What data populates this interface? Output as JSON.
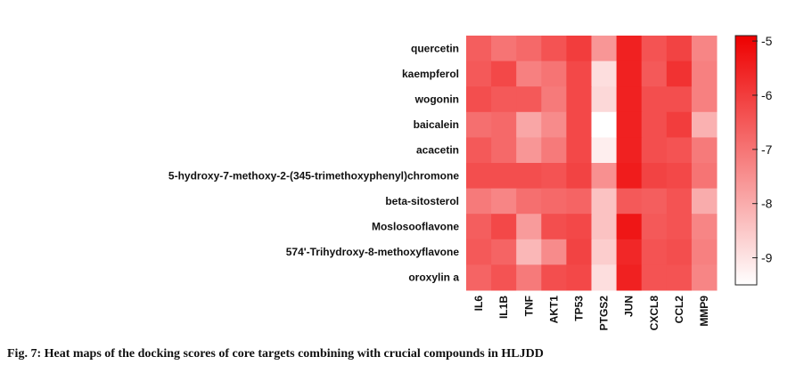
{
  "caption": "Fig. 7: Heat maps of the docking scores of core targets combining with crucial compounds in HLJDD",
  "chart_data": {
    "type": "heatmap",
    "title": "",
    "rows": [
      "quercetin",
      "kaempferol",
      "wogonin",
      "baicalein",
      "acacetin",
      "5-hydroxy-7-methoxy-2-(345-trimethoxyphenyl)chromone",
      "beta-sitosterol",
      "Moslosooflavone",
      "574'-Trihydroxy-8-methoxyflavone",
      "oroxylin a"
    ],
    "columns": [
      "IL6",
      "IL1B",
      "TNF",
      "AKT1",
      "TP53",
      "PTGS2",
      "JUN",
      "CXCL8",
      "CCL2",
      "MMP9"
    ],
    "values": [
      [
        -6.6,
        -7.0,
        -6.8,
        -6.4,
        -6.0,
        -7.6,
        -5.5,
        -6.4,
        -6.1,
        -7.3
      ],
      [
        -6.5,
        -6.2,
        -7.2,
        -7.0,
        -6.2,
        -8.9,
        -5.5,
        -6.5,
        -5.8,
        -7.2
      ],
      [
        -6.3,
        -6.5,
        -6.5,
        -7.1,
        -6.2,
        -8.8,
        -5.5,
        -6.3,
        -6.3,
        -7.2
      ],
      [
        -6.9,
        -6.8,
        -7.9,
        -7.4,
        -6.2,
        -9.5,
        -5.5,
        -6.3,
        -6.0,
        -8.1
      ],
      [
        -6.5,
        -6.8,
        -7.6,
        -7.1,
        -6.2,
        -9.2,
        -5.5,
        -6.3,
        -6.4,
        -7.1
      ],
      [
        -6.3,
        -6.3,
        -6.3,
        -6.4,
        -6.1,
        -7.5,
        -5.4,
        -6.1,
        -6.2,
        -7.0
      ],
      [
        -7.1,
        -7.3,
        -6.9,
        -6.8,
        -6.7,
        -8.4,
        -6.5,
        -6.6,
        -6.4,
        -8.0
      ],
      [
        -6.6,
        -6.2,
        -7.7,
        -6.3,
        -6.2,
        -8.4,
        -5.3,
        -6.5,
        -6.4,
        -7.3
      ],
      [
        -6.5,
        -6.7,
        -8.2,
        -7.4,
        -6.1,
        -8.6,
        -5.6,
        -6.4,
        -6.3,
        -7.2
      ],
      [
        -6.7,
        -6.4,
        -7.1,
        -6.3,
        -6.2,
        -8.9,
        -5.5,
        -6.4,
        -6.4,
        -7.3
      ]
    ],
    "colorbar": {
      "ticks": [
        -5,
        -6,
        -7,
        -8,
        -9
      ],
      "range": [
        -9.5,
        -4.9
      ],
      "color_high": "#ee0000",
      "color_low": "#ffffff"
    }
  }
}
